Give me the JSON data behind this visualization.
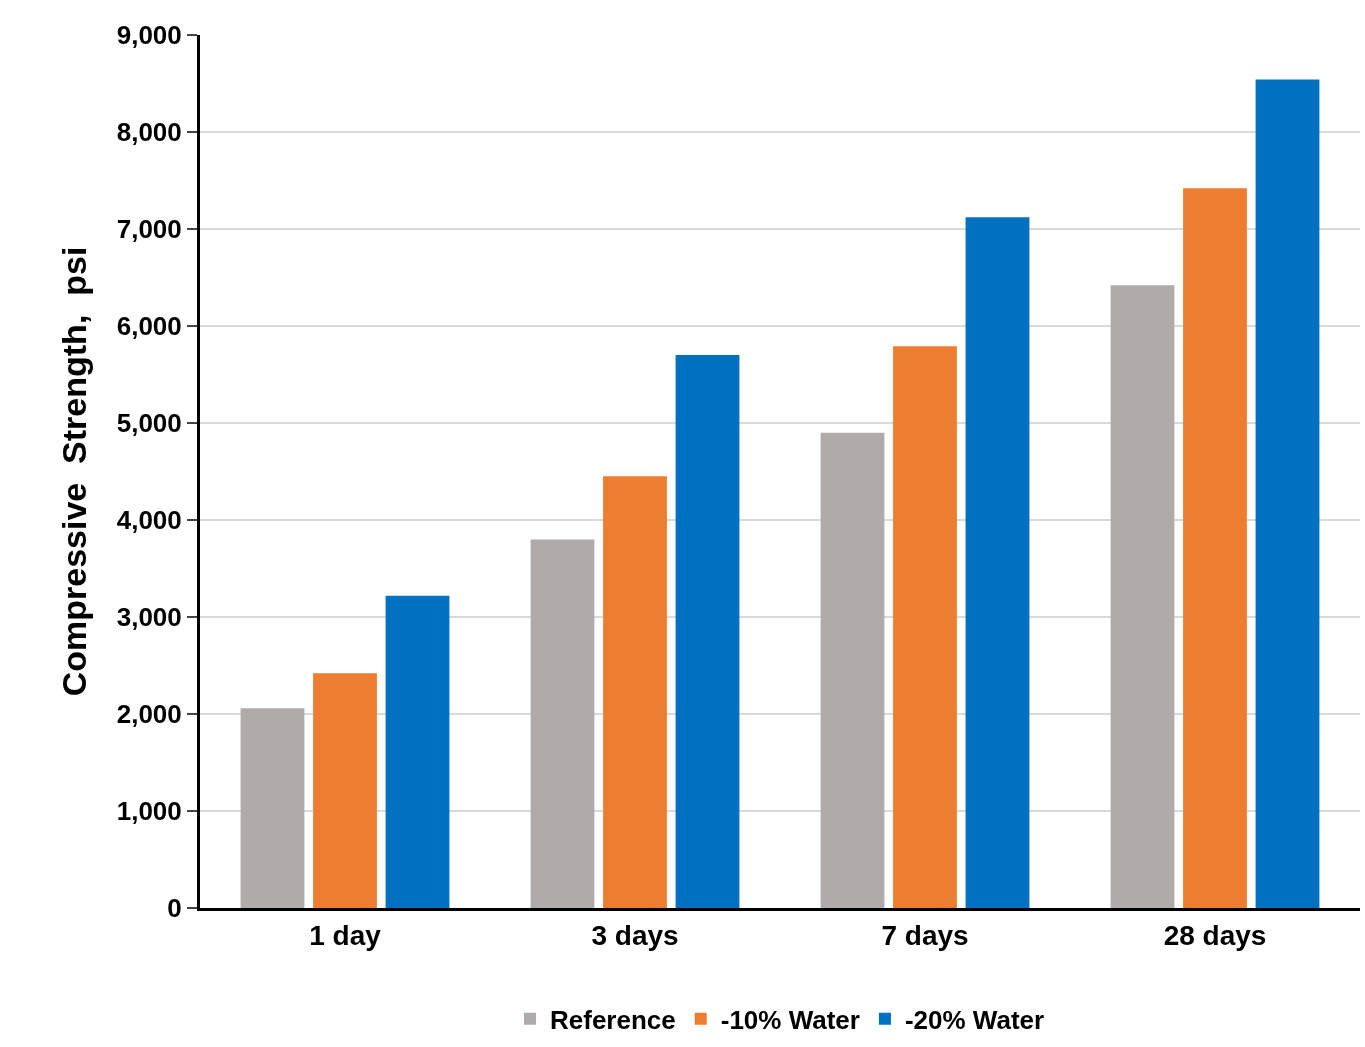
{
  "chart_data": {
    "type": "bar",
    "ylabel": "Compressive  Strength,  psi",
    "categories": [
      "1 day",
      "3 days",
      "7 days",
      "28 days"
    ],
    "series": [
      {
        "name": "Reference",
        "color": "#afabab",
        "values": [
          2060,
          3800,
          4900,
          6420
        ]
      },
      {
        "name": "-10% Water",
        "color": "#ed7d31",
        "values": [
          2420,
          4450,
          5790,
          7420
        ]
      },
      {
        "name": "-20% Water",
        "color": "#0070c0",
        "values": [
          3220,
          5700,
          7120,
          8540
        ]
      }
    ],
    "ylim": [
      0,
      9000
    ],
    "yticks": [
      {
        "value": 0,
        "label": "0"
      },
      {
        "value": 1000,
        "label": "1,000"
      },
      {
        "value": 2000,
        "label": "2,000"
      },
      {
        "value": 3000,
        "label": "3,000"
      },
      {
        "value": 4000,
        "label": "4,000"
      },
      {
        "value": 5000,
        "label": "5,000"
      },
      {
        "value": 6000,
        "label": "6,000"
      },
      {
        "value": 7000,
        "label": "7,000"
      },
      {
        "value": 8000,
        "label": "8,000"
      },
      {
        "value": 9000,
        "label": "9,000"
      }
    ],
    "grid": "y",
    "legend": "bottom"
  }
}
